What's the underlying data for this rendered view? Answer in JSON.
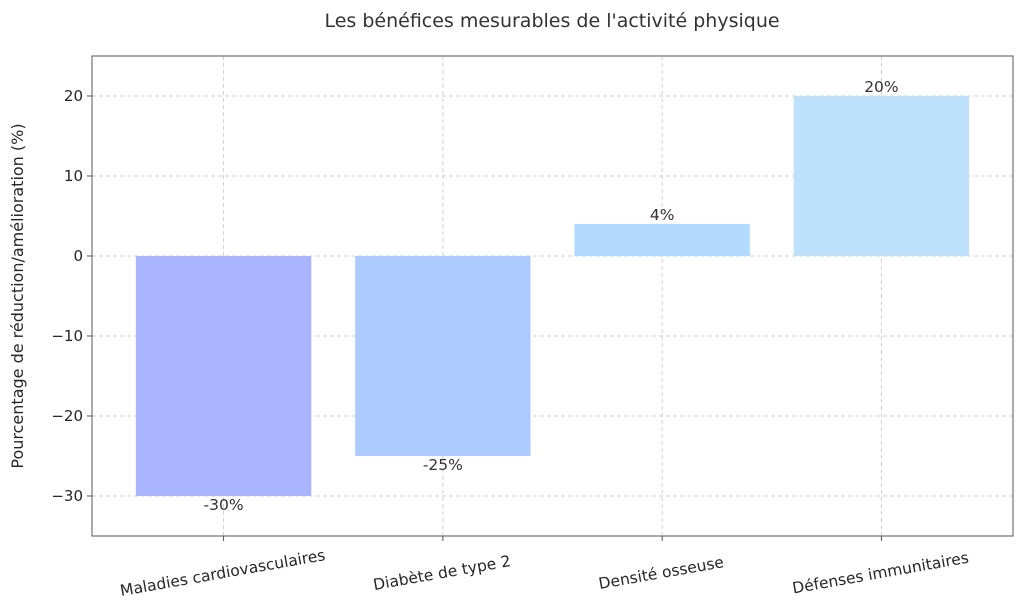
{
  "chart_data": {
    "type": "bar",
    "title": "Les bénéfices mesurables de l'activité physique",
    "xlabel": "",
    "ylabel": "Pourcentage de réduction/amélioration (%)",
    "categories": [
      "Maladies cardiovasculaires",
      "Diabète de type 2",
      "Densité osseuse",
      "Défenses immunitaires"
    ],
    "values": [
      -30,
      -25,
      4,
      20
    ],
    "data_labels": [
      "-30%",
      "-25%",
      "4%",
      "20%"
    ],
    "colors": [
      "#aab4ff",
      "#aecbff",
      "#b3daff",
      "#bde0fb"
    ],
    "ylim": [
      -35,
      25
    ],
    "yticks": [
      -30,
      -20,
      -10,
      0,
      10,
      20
    ],
    "ytick_labels": [
      "−30",
      "−20",
      "−10",
      "0",
      "10",
      "20"
    ],
    "grid": true
  }
}
